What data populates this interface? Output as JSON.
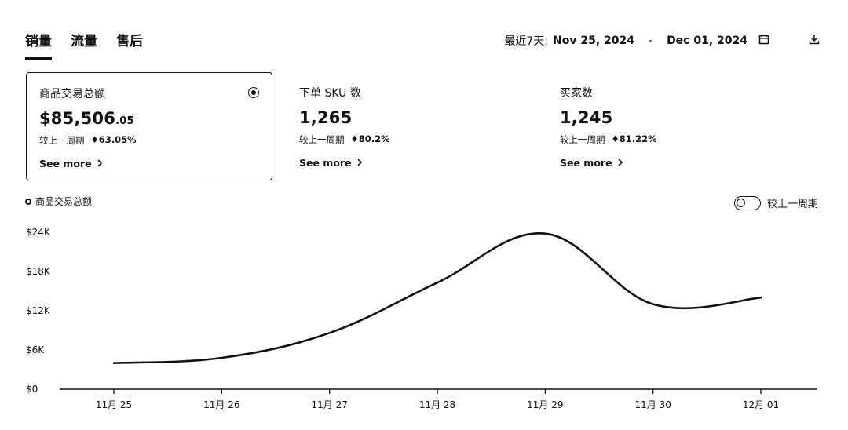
{
  "tabs": [
    {
      "label": "销量",
      "active": true
    },
    {
      "label": "流量",
      "active": false
    },
    {
      "label": "售后",
      "active": false
    }
  ],
  "date_range": {
    "prefix": "最近7天:",
    "start": "Nov 25, 2024",
    "separator": "-",
    "end": "Dec 01, 2024",
    "calendar_icon": "calendar-icon",
    "download_icon": "download-icon"
  },
  "cards": [
    {
      "title": "商品交易总额",
      "value_main": "$85,506",
      "value_cents": ".05",
      "compare_label": "较上一周期",
      "delta": "♦63.05%",
      "more": "See more",
      "selected": true
    },
    {
      "title": "下单 SKU 数",
      "value_main": "1,265",
      "value_cents": "",
      "compare_label": "较上一周期",
      "delta": "♦80.2%",
      "more": "See more",
      "selected": false
    },
    {
      "title": "买家数",
      "value_main": "1,245",
      "value_cents": "",
      "compare_label": "较上一周期",
      "delta": "♦81.22%",
      "more": "See more",
      "selected": false
    }
  ],
  "legend": {
    "label": "商品交易总额"
  },
  "compare_toggle": {
    "label": "较上一周期",
    "on": false
  },
  "chart_data": {
    "type": "line",
    "title": "",
    "xlabel": "",
    "ylabel": "",
    "categories": [
      "11月 25",
      "11月 26",
      "11月 27",
      "11月 28",
      "11月 29",
      "11月 30",
      "12月 01"
    ],
    "series": [
      {
        "values": [
          4000,
          4800,
          8600,
          16300,
          23800,
          13000,
          14000
        ]
      }
    ],
    "ylim": [
      0,
      24000
    ],
    "yticks": [
      0,
      6000,
      12000,
      18000,
      24000
    ],
    "ytick_labels": [
      "$0",
      "$6K",
      "$12K",
      "$18K",
      "$24K"
    ],
    "grid": false,
    "line_color": "#111111"
  }
}
